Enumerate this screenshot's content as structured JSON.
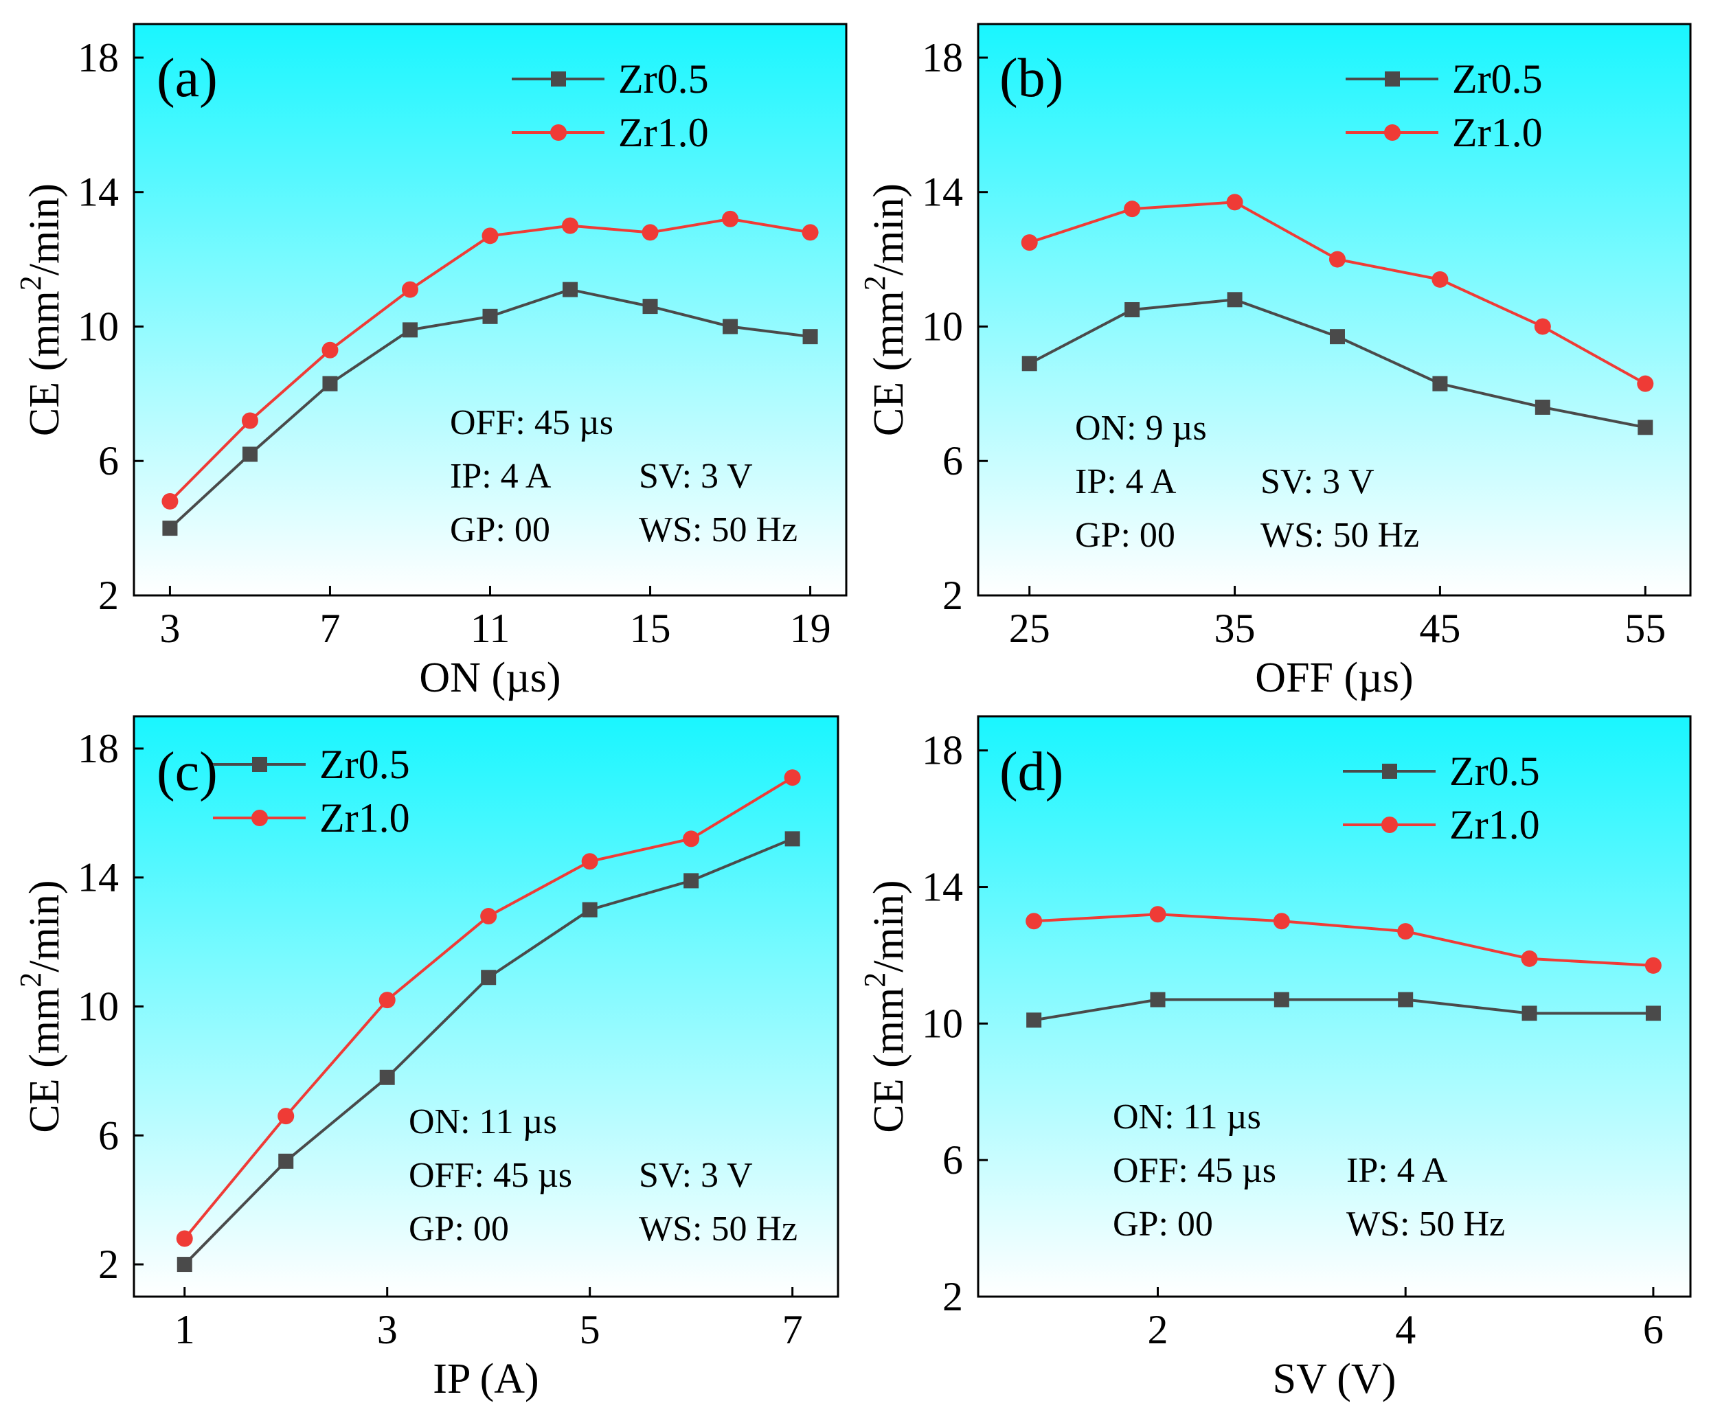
{
  "colors": {
    "zr05": "#4a4a4a",
    "zr10": "#ef3b36",
    "bg_top": "#19f6ff",
    "bg_bottom": "#ffffff"
  },
  "chart_data": [
    {
      "type": "line",
      "panel": "(a)",
      "xlabel": "ON (µs)",
      "ylabel": "CE (mm²/min)",
      "ylabel_parts": [
        "CE (mm",
        "2",
        "/min)"
      ],
      "x": [
        3,
        5,
        7,
        9,
        11,
        13,
        15,
        17,
        19
      ],
      "xlim": [
        2.1,
        19.9
      ],
      "ylim": [
        2,
        19
      ],
      "xticks": [
        3,
        7,
        11,
        15,
        19
      ],
      "yticks": [
        2,
        6,
        10,
        14,
        18
      ],
      "legend_position": "top-right",
      "series": [
        {
          "name": "Zr0.5",
          "marker": "square",
          "values": [
            4.0,
            6.2,
            8.3,
            9.9,
            10.3,
            11.1,
            10.6,
            10.0,
            9.7
          ]
        },
        {
          "name": "Zr1.0",
          "marker": "circle",
          "values": [
            4.8,
            7.2,
            9.3,
            11.1,
            12.7,
            13.0,
            12.8,
            13.2,
            12.8
          ]
        }
      ],
      "params": [
        {
          "left": "OFF: 45 µs",
          "right": ""
        },
        {
          "left": "IP: 4 A",
          "right": "SV: 3 V"
        },
        {
          "left": "GP: 00",
          "right": "WS: 50 Hz"
        }
      ]
    },
    {
      "type": "line",
      "panel": "(b)",
      "xlabel": "OFF (µs)",
      "ylabel": "CE (mm²/min)",
      "ylabel_parts": [
        "CE (mm",
        "2",
        "/min)"
      ],
      "x": [
        25,
        30,
        35,
        40,
        45,
        50,
        55
      ],
      "xlim": [
        22.5,
        57.2
      ],
      "ylim": [
        2,
        19
      ],
      "xticks": [
        25,
        35,
        45,
        55
      ],
      "yticks": [
        2,
        6,
        10,
        14,
        18
      ],
      "legend_position": "top-right",
      "series": [
        {
          "name": "Zr0.5",
          "marker": "square",
          "values": [
            8.9,
            10.5,
            10.8,
            9.7,
            8.3,
            7.6,
            7.0
          ]
        },
        {
          "name": "Zr1.0",
          "marker": "circle",
          "values": [
            12.5,
            13.5,
            13.7,
            12.0,
            11.4,
            10.0,
            8.3
          ]
        }
      ],
      "params": [
        {
          "left": "ON: 9 µs",
          "right": ""
        },
        {
          "left": "IP: 4 A",
          "right": "SV: 3 V"
        },
        {
          "left": "GP: 00",
          "right": "WS: 50 Hz"
        }
      ]
    },
    {
      "type": "line",
      "panel": "(c)",
      "xlabel": "IP (A)",
      "ylabel": "CE (mm²/min)",
      "ylabel_parts": [
        "CE (mm",
        "2",
        "/min)"
      ],
      "x": [
        1,
        2,
        3,
        4,
        5,
        6,
        7
      ],
      "xlim": [
        0.5,
        7.45
      ],
      "ylim": [
        1,
        19
      ],
      "xticks": [
        1,
        3,
        5,
        7
      ],
      "yticks": [
        2,
        6,
        10,
        14,
        18
      ],
      "legend_position": "top-left",
      "series": [
        {
          "name": "Zr0.5",
          "marker": "square",
          "values": [
            2.0,
            5.2,
            7.8,
            10.9,
            13.0,
            13.9,
            15.2
          ]
        },
        {
          "name": "Zr1.0",
          "marker": "circle",
          "values": [
            2.8,
            6.6,
            10.2,
            12.8,
            14.5,
            15.2,
            17.1
          ]
        }
      ],
      "params": [
        {
          "left": "ON: 11 µs",
          "right": ""
        },
        {
          "left": "OFF: 45 µs",
          "right": "SV: 3 V"
        },
        {
          "left": "GP: 00",
          "right": "WS: 50 Hz"
        }
      ]
    },
    {
      "type": "line",
      "panel": "(d)",
      "xlabel": "SV (V)",
      "ylabel": "CE (mm²/min)",
      "ylabel_parts": [
        "CE (mm",
        "2",
        "/min)"
      ],
      "x": [
        1,
        2,
        3,
        4,
        5,
        6
      ],
      "xlim": [
        0.55,
        6.3
      ],
      "ylim": [
        2,
        19
      ],
      "xticks": [
        2,
        4,
        6
      ],
      "yticks": [
        2,
        6,
        10,
        14,
        18
      ],
      "legend_position": "top-right",
      "series": [
        {
          "name": "Zr0.5",
          "marker": "square",
          "values": [
            10.1,
            10.7,
            10.7,
            10.7,
            10.3,
            10.3
          ]
        },
        {
          "name": "Zr1.0",
          "marker": "circle",
          "values": [
            13.0,
            13.2,
            13.0,
            12.7,
            11.9,
            11.7
          ]
        }
      ],
      "params": [
        {
          "left": "ON: 11 µs",
          "right": ""
        },
        {
          "left": "OFF: 45 µs",
          "right": "IP: 4 A"
        },
        {
          "left": "GP: 00",
          "right": "WS: 50 Hz"
        }
      ]
    }
  ]
}
